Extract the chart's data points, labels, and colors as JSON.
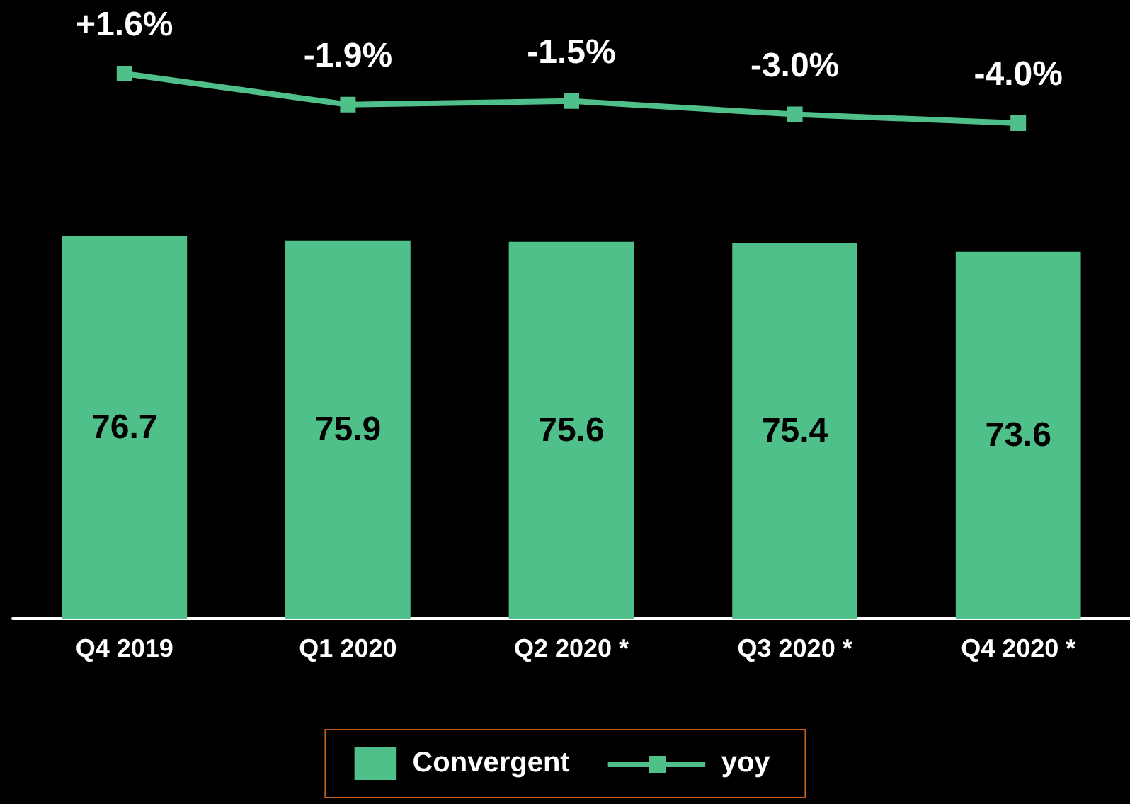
{
  "chart_data": [
    {
      "type": "line",
      "categories": [
        null,
        null,
        null,
        null,
        null
      ],
      "series": [
        {
          "name": "yoy",
          "color": "#50c08a",
          "marker": "square",
          "values": [
            1.6,
            -1.9,
            -1.5,
            -3.0,
            -4.0
          ],
          "value_labels": [
            "+1.6%",
            "-1.9%",
            "-1.5%",
            "-3.0%",
            "-4.0%"
          ]
        }
      ],
      "tick_labels": false
    },
    {
      "type": "bar",
      "categories": [
        "Q4 2019",
        "Q1 2020",
        "Q2 2020 *",
        "Q3 2020 *",
        "Q4 2020 *"
      ],
      "series": [
        {
          "name": "Convergent",
          "color": "#50c08a",
          "values": [
            76.7,
            75.9,
            75.6,
            75.4,
            73.6
          ],
          "value_labels": [
            "76.7",
            "75.9",
            "75.6",
            "75.4",
            "73.6"
          ]
        }
      ],
      "tick_labels": "x",
      "legend": "bottom"
    }
  ]
}
